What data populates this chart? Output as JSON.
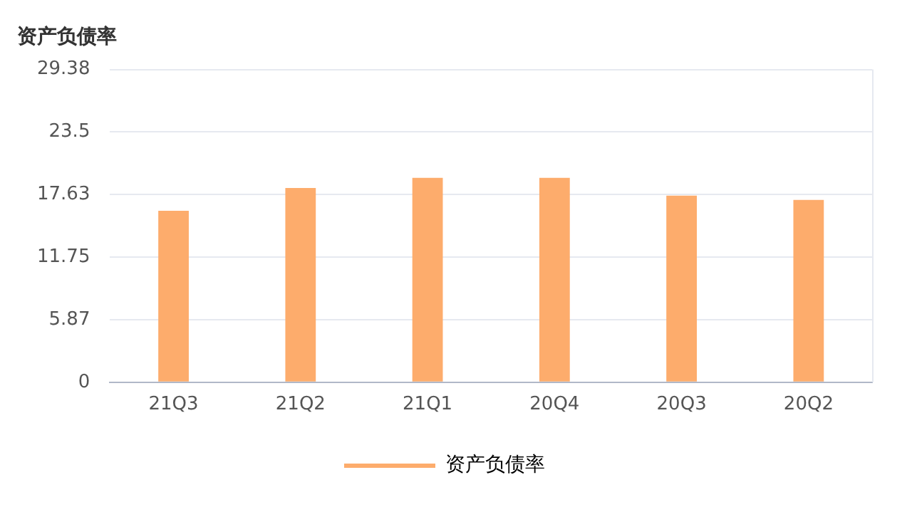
{
  "chart_data": {
    "type": "bar",
    "title": "资产负债率",
    "categories": [
      "21Q3",
      "21Q2",
      "21Q1",
      "20Q4",
      "20Q3",
      "20Q2"
    ],
    "series": [
      {
        "name": "资产负债率",
        "color": "#fdac6c",
        "values": [
          16.1,
          18.25,
          19.2,
          19.2,
          17.53,
          17.12
        ]
      }
    ],
    "ylim": [
      0,
      29.38
    ],
    "yticks": [
      0,
      5.87,
      11.75,
      17.63,
      23.5,
      29.38
    ],
    "grid": "y",
    "legend": "bottom"
  }
}
